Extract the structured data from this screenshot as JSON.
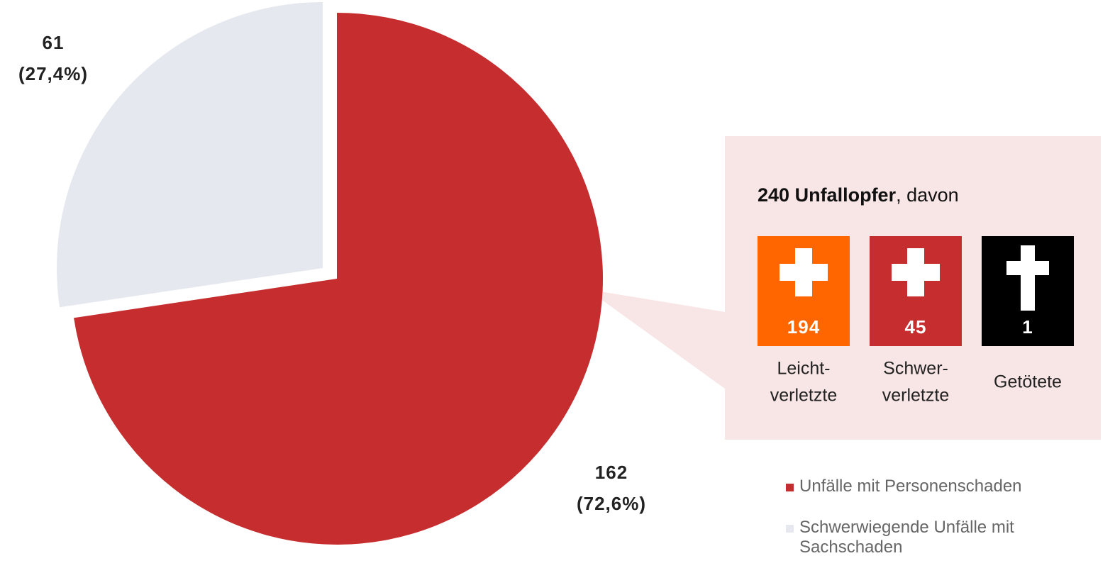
{
  "chart_data": {
    "type": "pie",
    "series": [
      {
        "name": "Unfälle mit Personenschaden",
        "color": "#c62d2f"
      },
      {
        "name": "Schwerwiegende Unfälle mit Sachschaden",
        "color": "#e5e8ee"
      }
    ],
    "values": [
      162,
      61
    ],
    "shares": [
      72.6,
      27.4
    ],
    "share_labels": [
      "(72,6%)",
      "(27,4%)"
    ],
    "infobox": {
      "total": 240,
      "total_word": "Unfallopfer",
      "suffix": ", davon",
      "items": [
        {
          "value": 194,
          "lines": [
            "Leicht-",
            "verletzte"
          ],
          "color": "#ff6600"
        },
        {
          "value": 45,
          "lines": [
            "Schwer-",
            "verletzte"
          ],
          "color": "#c62d2f"
        },
        {
          "value": 1,
          "lines": [
            "Getötete"
          ],
          "color": "#000000"
        }
      ]
    }
  }
}
